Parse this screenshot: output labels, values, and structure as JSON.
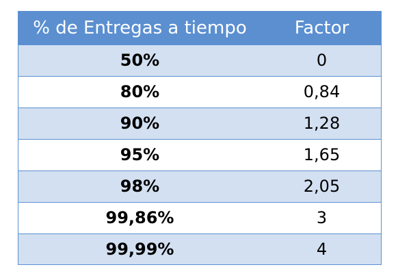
{
  "table": {
    "headers": [
      "% de Entregas a tiempo",
      "Factor"
    ],
    "rows": [
      {
        "percent": "50%",
        "factor": "0"
      },
      {
        "percent": "80%",
        "factor": "0,84"
      },
      {
        "percent": "90%",
        "factor": "1,28"
      },
      {
        "percent": "95%",
        "factor": "1,65"
      },
      {
        "percent": "98%",
        "factor": "2,05"
      },
      {
        "percent": "99,86%",
        "factor": "3"
      },
      {
        "percent": "99,99%",
        "factor": "4"
      }
    ]
  },
  "colors": {
    "header_bg": "#5b8fd0",
    "header_text": "#ffffff",
    "shaded_row": "#d3e0f1",
    "plain_row": "#ffffff",
    "border": "#5b8fd0"
  }
}
